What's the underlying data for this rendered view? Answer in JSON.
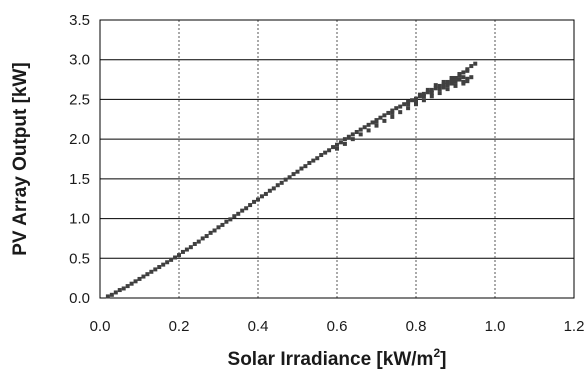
{
  "chart_data": {
    "type": "scatter",
    "xlabel": "Solar Irradiance [kW/m",
    "xlabel_superscript": "2",
    "xlabel_suffix": "]",
    "ylabel": "PV Array Output [kW]",
    "xlim": [
      0,
      1.2
    ],
    "ylim": [
      0,
      3.5
    ],
    "xticks": [
      "0.0",
      "0.2",
      "0.4",
      "0.6",
      "0.8",
      "1.0",
      "1.2"
    ],
    "yticks": [
      "0.0",
      "0.5",
      "1.0",
      "1.5",
      "2.0",
      "2.5",
      "3.0",
      "3.5"
    ],
    "grid": {
      "horizontal": "solid",
      "vertical": "dashed"
    },
    "marker_color": "#404040",
    "series": [
      {
        "values": [
          [
            0.02,
            0.02
          ],
          [
            0.03,
            0.04
          ],
          [
            0.04,
            0.07
          ],
          [
            0.05,
            0.1
          ],
          [
            0.06,
            0.12
          ],
          [
            0.07,
            0.15
          ],
          [
            0.08,
            0.18
          ],
          [
            0.09,
            0.21
          ],
          [
            0.1,
            0.24
          ],
          [
            0.11,
            0.27
          ],
          [
            0.12,
            0.3
          ],
          [
            0.13,
            0.33
          ],
          [
            0.14,
            0.36
          ],
          [
            0.15,
            0.39
          ],
          [
            0.16,
            0.42
          ],
          [
            0.17,
            0.45
          ],
          [
            0.18,
            0.48
          ],
          [
            0.19,
            0.51
          ],
          [
            0.2,
            0.54
          ],
          [
            0.21,
            0.58
          ],
          [
            0.22,
            0.61
          ],
          [
            0.23,
            0.64
          ],
          [
            0.24,
            0.68
          ],
          [
            0.25,
            0.71
          ],
          [
            0.26,
            0.75
          ],
          [
            0.27,
            0.78
          ],
          [
            0.28,
            0.82
          ],
          [
            0.29,
            0.85
          ],
          [
            0.3,
            0.89
          ],
          [
            0.31,
            0.92
          ],
          [
            0.32,
            0.96
          ],
          [
            0.33,
            0.99
          ],
          [
            0.34,
            1.03
          ],
          [
            0.35,
            1.06
          ],
          [
            0.36,
            1.1
          ],
          [
            0.37,
            1.13
          ],
          [
            0.38,
            1.17
          ],
          [
            0.39,
            1.21
          ],
          [
            0.4,
            1.24
          ],
          [
            0.41,
            1.28
          ],
          [
            0.42,
            1.31
          ],
          [
            0.43,
            1.35
          ],
          [
            0.44,
            1.38
          ],
          [
            0.45,
            1.42
          ],
          [
            0.46,
            1.45
          ],
          [
            0.47,
            1.49
          ],
          [
            0.48,
            1.52
          ],
          [
            0.49,
            1.56
          ],
          [
            0.5,
            1.59
          ],
          [
            0.51,
            1.63
          ],
          [
            0.52,
            1.66
          ],
          [
            0.53,
            1.7
          ],
          [
            0.54,
            1.73
          ],
          [
            0.55,
            1.76
          ],
          [
            0.56,
            1.8
          ],
          [
            0.57,
            1.83
          ],
          [
            0.58,
            1.86
          ],
          [
            0.59,
            1.9
          ],
          [
            0.6,
            1.93
          ],
          [
            0.61,
            1.96
          ],
          [
            0.62,
            2.0
          ],
          [
            0.63,
            2.03
          ],
          [
            0.64,
            2.06
          ],
          [
            0.65,
            2.09
          ],
          [
            0.66,
            2.12
          ],
          [
            0.67,
            2.15
          ],
          [
            0.68,
            2.18
          ],
          [
            0.69,
            2.21
          ],
          [
            0.7,
            2.24
          ],
          [
            0.71,
            2.27
          ],
          [
            0.72,
            2.3
          ],
          [
            0.73,
            2.33
          ],
          [
            0.74,
            2.36
          ],
          [
            0.75,
            2.39
          ],
          [
            0.76,
            2.41
          ],
          [
            0.77,
            2.44
          ],
          [
            0.78,
            2.47
          ],
          [
            0.79,
            2.49
          ],
          [
            0.8,
            2.51
          ],
          [
            0.81,
            2.54
          ],
          [
            0.82,
            2.57
          ],
          [
            0.83,
            2.59
          ],
          [
            0.84,
            2.62
          ],
          [
            0.85,
            2.64
          ],
          [
            0.86,
            2.67
          ],
          [
            0.87,
            2.69
          ],
          [
            0.88,
            2.72
          ],
          [
            0.89,
            2.74
          ],
          [
            0.9,
            2.77
          ],
          [
            0.91,
            2.8
          ],
          [
            0.92,
            2.84
          ],
          [
            0.93,
            2.88
          ],
          [
            0.94,
            2.92
          ],
          [
            0.95,
            2.95
          ],
          [
            0.6,
            1.88
          ],
          [
            0.62,
            1.94
          ],
          [
            0.64,
            2.0
          ],
          [
            0.66,
            2.06
          ],
          [
            0.68,
            2.11
          ],
          [
            0.7,
            2.17
          ],
          [
            0.72,
            2.23
          ],
          [
            0.74,
            2.28
          ],
          [
            0.76,
            2.34
          ],
          [
            0.78,
            2.39
          ],
          [
            0.8,
            2.44
          ],
          [
            0.82,
            2.49
          ],
          [
            0.84,
            2.54
          ],
          [
            0.86,
            2.58
          ],
          [
            0.88,
            2.63
          ],
          [
            0.9,
            2.67
          ],
          [
            0.92,
            2.72
          ],
          [
            0.7,
            2.22
          ],
          [
            0.74,
            2.33
          ],
          [
            0.78,
            2.44
          ],
          [
            0.82,
            2.54
          ],
          [
            0.86,
            2.63
          ],
          [
            0.88,
            2.68
          ],
          [
            0.9,
            2.72
          ],
          [
            0.92,
            2.78
          ],
          [
            0.93,
            2.76
          ],
          [
            0.8,
            2.48
          ],
          [
            0.84,
            2.58
          ],
          [
            0.87,
            2.65
          ],
          [
            0.89,
            2.7
          ],
          [
            0.91,
            2.75
          ],
          [
            0.92,
            2.7
          ],
          [
            0.93,
            2.73
          ],
          [
            0.94,
            2.78
          ],
          [
            0.93,
            2.86
          ],
          [
            0.91,
            2.82
          ],
          [
            0.89,
            2.77
          ],
          [
            0.87,
            2.72
          ],
          [
            0.85,
            2.68
          ],
          [
            0.83,
            2.62
          ],
          [
            0.81,
            2.56
          ]
        ]
      }
    ]
  }
}
